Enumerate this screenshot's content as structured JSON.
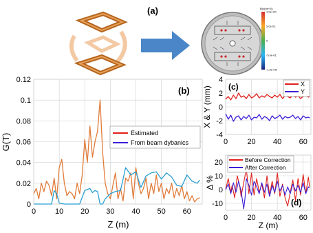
{
  "panel_labels": {
    "a": "(a)",
    "b": "(b)",
    "c": "(c)",
    "d": "(d)"
  },
  "colorbar": {
    "title": "B(x)(m^2)₂",
    "ticks": [
      "1.0e+00",
      "5.0e-01",
      "0",
      "-5.0e-01",
      "-1.0e+00"
    ]
  },
  "icons": [
    "coil-magnet-icon",
    "right-arrow-icon",
    "field-map-icon"
  ],
  "colors": {
    "estimated": "#e07b39",
    "beam": "#2b9fd1",
    "red": "#e0201b",
    "blue": "#3a1fd6",
    "arrow": "#4a86c8"
  },
  "chart_data": [
    {
      "type": "line",
      "panel": "b",
      "xlabel": "Z (m)",
      "ylabel": "G(T)",
      "xlim": [
        0,
        66
      ],
      "ylim": [
        0,
        0.12
      ],
      "xticks": [
        0,
        10,
        20,
        30,
        40,
        50,
        60
      ],
      "yticks": [
        0,
        0.02,
        0.04,
        0.06,
        0.08,
        0.1,
        0.12
      ],
      "ytick_labels": [
        "0",
        "0.02",
        "0.04",
        "0.06",
        "0.08",
        "0.1",
        "0.12"
      ],
      "legend": "upper-right",
      "series": [
        {
          "name": "Estimated",
          "color": "#e07b39",
          "x": [
            0,
            1,
            2,
            3,
            4,
            5,
            6,
            7,
            8,
            9,
            10,
            11,
            12,
            13,
            14,
            15,
            16,
            17,
            18,
            19,
            20,
            21,
            22,
            23,
            24,
            25,
            26,
            27,
            28,
            29,
            30,
            31,
            32,
            33,
            34,
            35,
            36,
            37,
            38,
            39,
            40,
            41,
            42,
            43,
            44,
            45,
            46,
            47,
            48,
            49,
            50,
            51,
            52,
            53,
            54,
            55,
            56,
            57,
            58,
            59,
            60,
            61,
            62,
            63,
            64,
            65
          ],
          "y": [
            0.01,
            0.015,
            0.005,
            0.02,
            0.012,
            0.022,
            0.018,
            0.008,
            0.025,
            0.005,
            0.035,
            0.043,
            0.02,
            0.008,
            0.012,
            0.01,
            0.005,
            0.02,
            0.01,
            0.028,
            0.062,
            0.04,
            0.075,
            0.045,
            0.06,
            0.07,
            0.1,
            0.05,
            0.02,
            0.01,
            0.005,
            0.018,
            0.03,
            0.005,
            0.015,
            0.003,
            0.025,
            0.022,
            0.03,
            0.005,
            0.035,
            0.02,
            0.01,
            0.015,
            0.025,
            0.005,
            0.02,
            0.01,
            0.028,
            0.012,
            0.02,
            0.005,
            0.015,
            0.01,
            0.02,
            0.006,
            0.015,
            0.008,
            0.018,
            0.005,
            0.012,
            0.003,
            0.008,
            0.002,
            0.005,
            0.006
          ]
        },
        {
          "name": "From beam dybanics",
          "color": "#2b9fd1",
          "x": [
            0,
            7,
            8,
            9,
            10,
            12,
            14,
            16,
            18,
            20,
            22,
            23,
            24,
            25,
            26,
            27,
            28,
            30,
            32,
            34,
            36,
            38,
            40,
            42,
            44,
            46,
            48,
            50,
            52,
            54,
            56,
            58,
            60,
            62,
            64,
            65
          ],
          "y": [
            0,
            0,
            0.013,
            0.01,
            0.001,
            0,
            0,
            0,
            0,
            0.013,
            0.015,
            0.011,
            0.013,
            0.012,
            0,
            0,
            0.005,
            0.01,
            0.012,
            0.013,
            0.035,
            0.028,
            0.031,
            0.016,
            0.027,
            0.03,
            0.031,
            0.024,
            0.03,
            0.026,
            0.018,
            0.017,
            0.028,
            0.022,
            0.02,
            0.023
          ]
        }
      ]
    },
    {
      "type": "line",
      "panel": "c",
      "xlabel": "",
      "ylabel": "X & Y (mm)",
      "xlim": [
        0,
        66
      ],
      "ylim": [
        -4,
        4
      ],
      "xticks": [
        0,
        20,
        40,
        60
      ],
      "yticks": [
        -4,
        -2,
        0,
        2,
        4
      ],
      "legend": "upper-right",
      "series": [
        {
          "name": "X",
          "color": "#e0201b",
          "x": [
            0,
            2,
            4,
            6,
            8,
            10,
            12,
            14,
            16,
            18,
            20,
            22,
            24,
            26,
            28,
            30,
            32,
            34,
            36,
            38,
            40,
            42,
            44,
            46,
            48,
            50,
            52,
            54,
            56,
            58,
            60,
            62,
            64,
            65
          ],
          "y": [
            1.1,
            1.5,
            1.0,
            1.7,
            1.2,
            2.0,
            1.4,
            1.6,
            1.2,
            1.8,
            1.3,
            1.5,
            1.9,
            1.3,
            1.6,
            1.4,
            1.8,
            1.5,
            1.3,
            1.7,
            1.4,
            1.8,
            1.2,
            1.6,
            1.5,
            1.3,
            1.7,
            1.4,
            1.6,
            1.2,
            1.5,
            1.7,
            1.4,
            1.5
          ]
        },
        {
          "name": "Y",
          "color": "#3a1fd6",
          "x": [
            0,
            2,
            4,
            6,
            8,
            10,
            12,
            14,
            16,
            18,
            20,
            22,
            24,
            26,
            28,
            30,
            32,
            34,
            36,
            38,
            40,
            42,
            44,
            46,
            48,
            50,
            52,
            54,
            56,
            58,
            60,
            62,
            64,
            65
          ],
          "y": [
            -1.0,
            -1.8,
            -1.2,
            -2.1,
            -1.5,
            -1.3,
            -1.9,
            -1.4,
            -1.7,
            -1.2,
            -1.9,
            -1.5,
            -1.6,
            -1.1,
            -1.8,
            -1.4,
            -1.6,
            -2.0,
            -1.3,
            -1.7,
            -1.5,
            -1.2,
            -1.8,
            -1.4,
            -1.6,
            -1.5,
            -1.2,
            -1.7,
            -1.4,
            -1.9,
            -1.3,
            -1.6,
            -1.5,
            -1.6
          ]
        }
      ]
    },
    {
      "type": "line",
      "panel": "d",
      "xlabel": "Z (m)",
      "ylabel": "Δ %",
      "xlim": [
        0,
        66
      ],
      "ylim": [
        -15,
        25
      ],
      "xticks": [
        0,
        20,
        40,
        60
      ],
      "yticks": [
        -10,
        0,
        10,
        20
      ],
      "legend": "upper-left",
      "series": [
        {
          "name": "Before Correction",
          "color": "#e0201b",
          "x": [
            0,
            2,
            4,
            5,
            7,
            9,
            11,
            12,
            14,
            16,
            18,
            20,
            22,
            24,
            26,
            28,
            30,
            32,
            34,
            36,
            38,
            40,
            42,
            44,
            46,
            48,
            50,
            52,
            54,
            56,
            58,
            60,
            62,
            64,
            65
          ],
          "y": [
            0,
            8,
            -2,
            3,
            -6,
            10,
            2,
            -5,
            5,
            15,
            -3,
            12,
            -4,
            8,
            -2,
            4,
            -6,
            10,
            -4,
            6,
            -3,
            12,
            -5,
            4,
            -6,
            -12,
            -2,
            7,
            -8,
            8,
            -4,
            11,
            -3,
            9,
            2
          ]
        },
        {
          "name": "After Correction",
          "color": "#3a1fd6",
          "x": [
            0,
            2,
            4,
            6,
            8,
            10,
            12,
            14,
            15,
            16,
            18,
            20,
            22,
            24,
            26,
            28,
            30,
            32,
            34,
            36,
            38,
            40,
            42,
            44,
            46,
            48,
            50,
            52,
            54,
            56,
            58,
            60,
            62,
            64,
            65
          ],
          "y": [
            0,
            4,
            -3,
            5,
            -2,
            6,
            -1,
            -14,
            -6,
            8,
            3,
            -4,
            6,
            2,
            -3,
            5,
            -2,
            4,
            -5,
            3,
            -2,
            6,
            -1,
            3,
            -4,
            2,
            -3,
            4,
            -1,
            3,
            -2,
            5,
            -3,
            2,
            1
          ]
        }
      ]
    }
  ]
}
